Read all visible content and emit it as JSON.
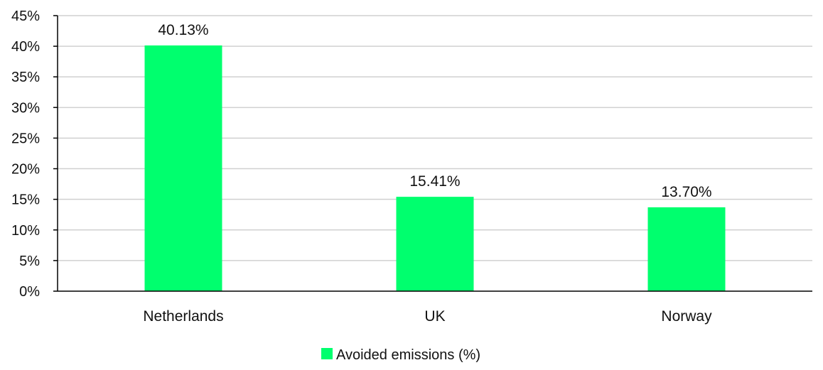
{
  "chart_data": {
    "type": "bar",
    "categories": [
      "Netherlands",
      "UK",
      "Norway"
    ],
    "series": [
      {
        "name": "Avoided emissions (%)",
        "values": [
          40.13,
          15.41,
          13.7
        ],
        "color": "#00ff6e"
      }
    ],
    "data_labels": [
      "40.13%",
      "15.41%",
      "13.70%"
    ],
    "y_ticks": [
      "0%",
      "5%",
      "10%",
      "15%",
      "20%",
      "25%",
      "30%",
      "35%",
      "40%",
      "45%"
    ],
    "ylim": [
      0,
      45
    ],
    "y_tick_step": 5,
    "grid": true,
    "legend_position": "bottom-center",
    "title": "",
    "xlabel": "",
    "ylabel": ""
  },
  "colors": {
    "bar": "#00ff6e",
    "grid": "#d0d0d0",
    "axis": "#000000",
    "text": "#111111"
  }
}
